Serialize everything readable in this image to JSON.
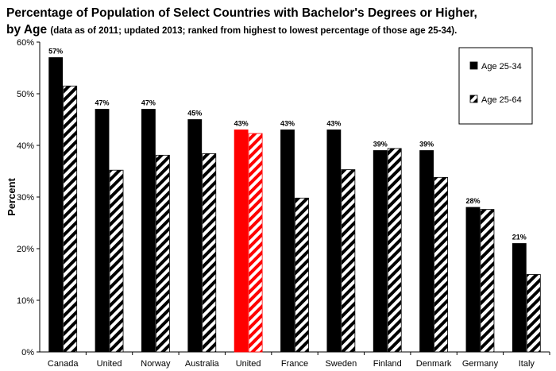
{
  "title": {
    "line1": "Percentage of Population of Select Countries with Bachelor's Degrees or Higher,",
    "line2_bold": "by Age",
    "line2_note": "(data as of 2011; updated 2013; ranked from highest to lowest percentage of those age 25-34)."
  },
  "chart_data": {
    "type": "bar",
    "title": "Percentage of Population of Select Countries with Bachelor's Degrees or Higher, by Age (data as of 2011; updated 2013; ranked from highest to lowest percentage of those age 25-34).",
    "xlabel": "",
    "ylabel": "Percent",
    "ylim": [
      0,
      60
    ],
    "yticks": [
      "0%",
      "10%",
      "20%",
      "30%",
      "40%",
      "50%",
      "60%"
    ],
    "categories": [
      "Canada",
      "United",
      "Norway",
      "Australia",
      "United",
      "France",
      "Sweden",
      "Finland",
      "Denmark",
      "Germany",
      "Italy"
    ],
    "highlight_index": 4,
    "highlight_color": "#ff0000",
    "series": [
      {
        "name": "Age 25-34",
        "style": "solid",
        "color": "#000000",
        "values": [
          57,
          47,
          47,
          45,
          43,
          43,
          43,
          39,
          39,
          28,
          21
        ],
        "data_labels": [
          "57%",
          "47%",
          "47%",
          "45%",
          "43%",
          "43%",
          "43%",
          "39%",
          "39%",
          "28%",
          "21%"
        ]
      },
      {
        "name": "Age 25-64",
        "style": "hatched",
        "color": "#000000",
        "values": [
          51.5,
          35.2,
          38.1,
          38.4,
          42.3,
          29.8,
          35.3,
          39.4,
          33.8,
          27.6,
          15
        ]
      }
    ],
    "grid": false,
    "legend_position": "top-right"
  }
}
